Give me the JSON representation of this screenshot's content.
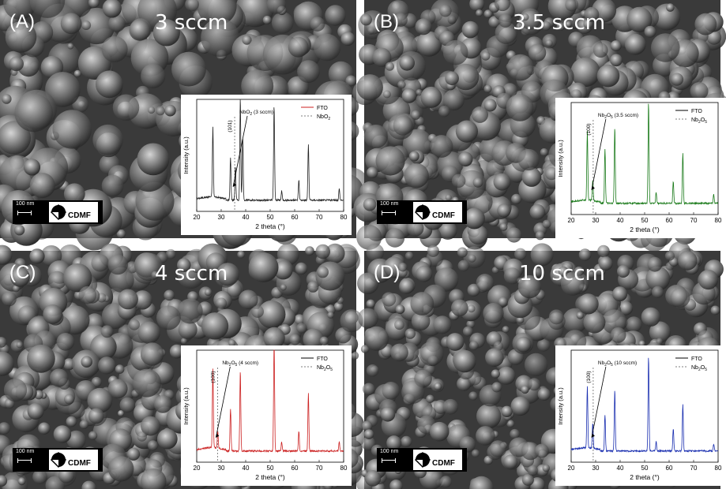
{
  "panels": [
    {
      "label": "(A)",
      "flow": "3 sccm",
      "scale_bar": "100 nm",
      "logo_text": "CDMF",
      "chart_data": {
        "type": "line",
        "xlabel": "2 theta (°)",
        "ylabel": "Intensity (a.u.)",
        "xlim": [
          20,
          80
        ],
        "xticks": [
          20,
          30,
          40,
          50,
          60,
          70,
          80
        ],
        "legend": [
          "FTO",
          "NbO2"
        ],
        "legend_position": "top-right",
        "line_color": "#222222",
        "legend_line_color": "#cc2222",
        "reference_line_x": 35.5,
        "peak_annotation": "(101)",
        "sample_annotation": "NbO2 (3 sccm)",
        "peaks": [
          [
            26.6,
            0.62
          ],
          [
            33.8,
            0.38
          ],
          [
            35.8,
            0.3
          ],
          [
            37.8,
            0.92
          ],
          [
            38.8,
            0.55
          ],
          [
            51.6,
            0.85
          ],
          [
            54.7,
            0.08
          ],
          [
            61.7,
            0.18
          ],
          [
            65.6,
            0.5
          ],
          [
            78.2,
            0.1
          ]
        ]
      }
    },
    {
      "label": "(B)",
      "flow": "3.5 sccm",
      "scale_bar": "100 nm",
      "logo_text": "CDMF",
      "chart_data": {
        "type": "line",
        "xlabel": "2 theta (°)",
        "ylabel": "Intensity (a.u.)",
        "xlim": [
          20,
          80
        ],
        "xticks": [
          20,
          30,
          40,
          50,
          60,
          70,
          80
        ],
        "legend": [
          "FTO",
          "Nb2O5"
        ],
        "legend_position": "top-right",
        "line_color": "#1a7a1a",
        "legend_line_color": "#000000",
        "reference_line_x": 29.0,
        "peak_annotation": "(100)",
        "sample_annotation": "Nb2O5 (3.5 sccm)",
        "peaks": [
          [
            26.6,
            0.62
          ],
          [
            28.8,
            0.18
          ],
          [
            33.8,
            0.48
          ],
          [
            37.8,
            0.68
          ],
          [
            51.6,
            0.9
          ],
          [
            54.7,
            0.1
          ],
          [
            61.7,
            0.2
          ],
          [
            65.6,
            0.45
          ],
          [
            78.2,
            0.08
          ]
        ]
      }
    },
    {
      "label": "(C)",
      "flow": "4 sccm",
      "scale_bar": "100 nm",
      "logo_text": "CDMF",
      "chart_data": {
        "type": "line",
        "xlabel": "2 theta (°)",
        "ylabel": "Intensity (a.u.)",
        "xlim": [
          20,
          80
        ],
        "xticks": [
          20,
          30,
          40,
          50,
          60,
          70,
          80
        ],
        "legend": [
          "FTO",
          "Nb2O5"
        ],
        "legend_position": "top-right",
        "line_color": "#cc2222",
        "legend_line_color": "#000000",
        "reference_line_x": 28.5,
        "peak_annotation": "(100)",
        "sample_annotation": "Nb2O5 (4 sccm)",
        "peaks": [
          [
            26.6,
            0.7
          ],
          [
            28.6,
            0.15
          ],
          [
            33.8,
            0.38
          ],
          [
            37.8,
            0.72
          ],
          [
            51.6,
            1.0
          ],
          [
            54.7,
            0.08
          ],
          [
            61.7,
            0.18
          ],
          [
            65.6,
            0.52
          ],
          [
            78.2,
            0.08
          ]
        ]
      }
    },
    {
      "label": "(D)",
      "flow": "10 sccm",
      "scale_bar": "100 nm",
      "logo_text": "CDMF",
      "chart_data": {
        "type": "line",
        "xlabel": "2 theta (°)",
        "ylabel": "Intensity (a.u.)",
        "xlim": [
          20,
          80
        ],
        "xticks": [
          20,
          30,
          40,
          50,
          60,
          70,
          80
        ],
        "legend": [
          "FTO",
          "Nb2O5"
        ],
        "legend_position": "top-right",
        "line_color": "#1a2fb0",
        "legend_line_color": "#000000",
        "reference_line_x": 29.0,
        "peak_annotation": "(100)",
        "sample_annotation": "Nb2O5 (10 sccm)",
        "peaks": [
          [
            26.6,
            0.55
          ],
          [
            28.8,
            0.22
          ],
          [
            33.8,
            0.32
          ],
          [
            37.8,
            0.55
          ],
          [
            51.6,
            0.85
          ],
          [
            54.7,
            0.08
          ],
          [
            61.7,
            0.2
          ],
          [
            65.6,
            0.42
          ],
          [
            78.2,
            0.06
          ]
        ]
      }
    }
  ]
}
